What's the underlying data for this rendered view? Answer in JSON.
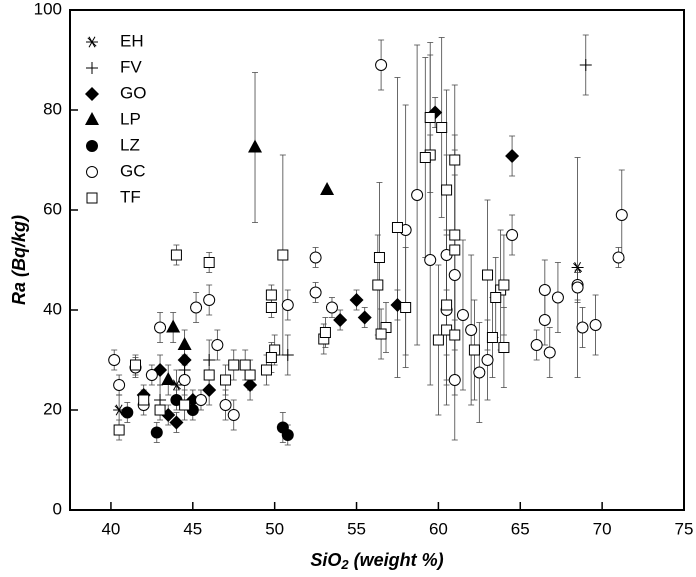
{
  "chart_data": {
    "type": "scatter",
    "x_label": {
      "base": "SiO",
      "sub": "2",
      "rest": " (weight %)"
    },
    "y_label": "Ra (Bq/kg)",
    "xlim": [
      37.5,
      75
    ],
    "xticks": [
      40,
      45,
      50,
      55,
      60,
      65,
      70,
      75
    ],
    "ylim": [
      0,
      100
    ],
    "yticks": [
      0,
      20,
      40,
      60,
      80,
      100
    ],
    "legend": "upper left",
    "series": [
      {
        "name": "EH",
        "marker": "asterisk",
        "color": "#000000",
        "x": [
          68.5,
          40.5,
          44
        ],
        "values": [
          48.5,
          20,
          25
        ],
        "errors": [
          22,
          3,
          3
        ]
      },
      {
        "name": "FV",
        "marker": "plus",
        "color": "#000000",
        "x": [
          69,
          50.8,
          43,
          44.5,
          46
        ],
        "values": [
          89,
          31,
          22,
          28,
          30
        ],
        "errors": [
          6,
          4,
          3,
          3,
          4
        ]
      },
      {
        "name": "GO",
        "marker": "diamond",
        "color": "#000000",
        "x": [
          59.8,
          64.5,
          57.5,
          55.5,
          55,
          54,
          48.5,
          44,
          43.5,
          45,
          46,
          43,
          44.5,
          42
        ],
        "values": [
          79.5,
          70.8,
          41,
          38.5,
          42,
          38,
          25,
          17.5,
          19,
          22,
          24,
          28,
          30,
          23
        ],
        "errors": [
          3,
          4,
          3,
          2,
          2,
          2,
          3,
          2,
          2,
          2,
          3,
          3,
          3,
          2
        ]
      },
      {
        "name": "LP",
        "marker": "triangle",
        "color": "#000000",
        "x": [
          48.8,
          53.2,
          43.8,
          44.5,
          43.5
        ],
        "values": [
          72.5,
          64,
          36.5,
          33,
          26
        ],
        "errors": [
          15,
          0,
          3,
          3,
          3
        ]
      },
      {
        "name": "LZ",
        "marker": "dot",
        "color": "#000000",
        "x": [
          42.8,
          50.5,
          50.8,
          41,
          45,
          44
        ],
        "values": [
          15.5,
          16.5,
          15,
          19.5,
          20,
          22
        ],
        "errors": [
          2,
          3,
          2,
          2,
          2,
          2
        ]
      },
      {
        "name": "GC",
        "marker": "circle",
        "color": "#000000",
        "x": [
          56.5,
          58.7,
          58,
          52.5,
          52.5,
          53.5,
          64.5,
          71.2,
          71,
          68.5,
          68.5,
          66.5,
          67.3,
          66.5,
          66,
          66.8,
          68.8,
          69.6,
          63,
          62.5,
          61,
          60.5,
          61.5,
          62,
          61,
          59.5,
          60.5,
          46,
          45.2,
          43,
          46.5,
          40.2,
          41.5,
          42.5,
          44.5,
          47.5,
          50.8,
          40.5,
          47,
          42,
          45.5
        ],
        "values": [
          89,
          63,
          56,
          50.5,
          43.5,
          40.5,
          55,
          59,
          50.5,
          45,
          44.5,
          44,
          42.5,
          38,
          33,
          31.5,
          36.5,
          37,
          30,
          27.5,
          26,
          40,
          39,
          36,
          47,
          50,
          51,
          42,
          40.5,
          36.5,
          33,
          30,
          28.5,
          27,
          26,
          19,
          41,
          25,
          21,
          21,
          22
        ],
        "errors": [
          5,
          30,
          25,
          2,
          2,
          2,
          4,
          9,
          2,
          3,
          3,
          6,
          7,
          5,
          3,
          5,
          4,
          6,
          8,
          10,
          12,
          15,
          15,
          15,
          20,
          25,
          20,
          3,
          3,
          3,
          3,
          2,
          2,
          2,
          3,
          3,
          3,
          2,
          3,
          2,
          2
        ]
      },
      {
        "name": "TF",
        "marker": "square",
        "color": "#000000",
        "x": [
          44,
          46,
          49.8,
          49.8,
          50.5,
          56.4,
          57.5,
          59.5,
          59.5,
          60.2,
          61,
          59.2,
          60.5,
          61,
          61,
          60.5,
          60,
          60.5,
          61,
          62.2,
          63,
          63.8,
          63.5,
          64,
          64,
          63.3,
          58,
          56.3,
          56.8,
          56.5,
          53,
          53.1,
          50,
          49.8,
          49.5,
          48.5,
          47.5,
          48.2,
          40.5,
          42,
          43,
          44.5,
          46,
          47,
          41.5
        ],
        "values": [
          51,
          49.5,
          43,
          40.5,
          51,
          50.5,
          56.5,
          78.5,
          71,
          76.5,
          70,
          70.5,
          64,
          55,
          52,
          41,
          34,
          36,
          35,
          32,
          47,
          44,
          42.5,
          45,
          32.5,
          34.5,
          40.5,
          45,
          36.5,
          35.2,
          34.2,
          35.5,
          32,
          30.5,
          28,
          27,
          29,
          29,
          16,
          22,
          20,
          21,
          27,
          26,
          29
        ],
        "errors": [
          2,
          2,
          2,
          2,
          20,
          15,
          30,
          15,
          20,
          18,
          15,
          20,
          20,
          20,
          20,
          15,
          15,
          15,
          12,
          10,
          15,
          12,
          8,
          10,
          8,
          8,
          12,
          10,
          5,
          5,
          3,
          3,
          3,
          3,
          3,
          3,
          3,
          3,
          2,
          2,
          2,
          3,
          3,
          3,
          2
        ]
      }
    ]
  }
}
